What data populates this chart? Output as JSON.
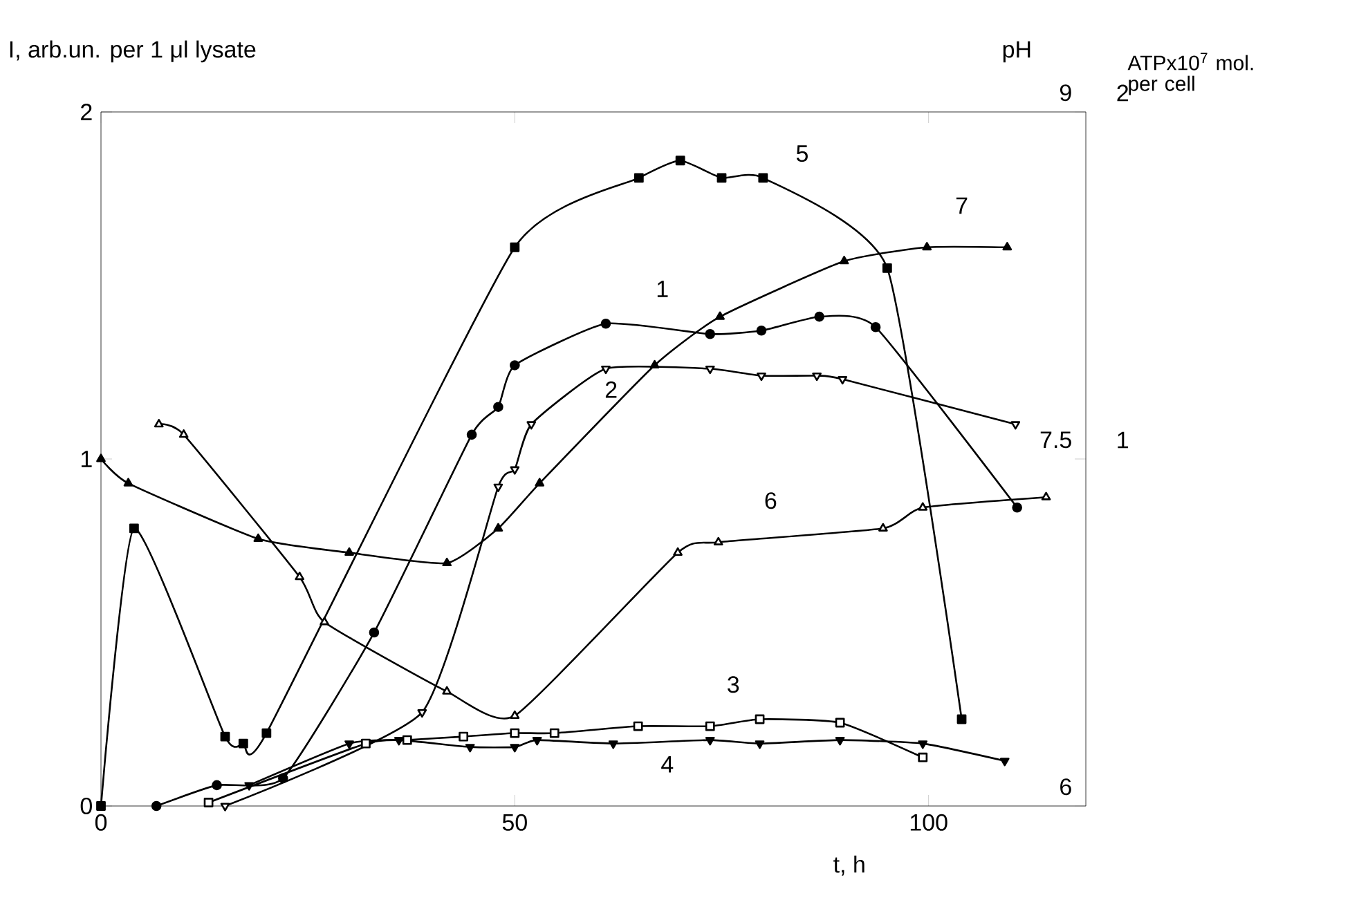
{
  "chart_data": {
    "type": "line",
    "ylabel": "I, arb.un. per 1 μl lysate",
    "xlabel": "t, h",
    "y2label": "pH",
    "y3label": "ATPx10$^{7}$ mol. per cell",
    "xlim": [
      0,
      119
    ],
    "xticks": [
      0,
      50,
      100
    ],
    "ylim": [
      0,
      2
    ],
    "yticks": [
      0,
      1,
      2
    ],
    "y2lim": [
      6,
      9
    ],
    "y2ticks": [
      6,
      7.5,
      9
    ],
    "y3lim": [
      0,
      2
    ],
    "y3ticks": [
      1,
      2
    ],
    "grid": false,
    "legend": false,
    "line_style": "solid",
    "series": [
      {
        "name": "1",
        "color": "#000000",
        "marker": "circle",
        "x": [
          6.7,
          14,
          22,
          33,
          44.8,
          48,
          50,
          61,
          73.6,
          79.8,
          86.8,
          93.6,
          110.7
        ],
        "values": [
          0.0,
          0.06,
          0.08,
          0.5,
          1.07,
          1.15,
          1.27,
          1.39,
          1.36,
          1.37,
          1.41,
          1.38,
          0.86
        ]
      },
      {
        "name": "2",
        "color": "#000000",
        "marker": "triangle-down-open",
        "x": [
          15,
          38.8,
          48,
          50,
          52,
          61,
          73.6,
          79.8,
          86.5,
          89.6,
          110.5
        ],
        "values": [
          0.0,
          0.27,
          0.92,
          0.97,
          1.1,
          1.26,
          1.26,
          1.24,
          1.24,
          1.23,
          1.1
        ]
      },
      {
        "name": "3",
        "color": "#000000",
        "marker": "square-open",
        "x": [
          13,
          32,
          37,
          43.8,
          50,
          54.8,
          64.9,
          73.6,
          79.6,
          89.3,
          99.3
        ],
        "values": [
          0.01,
          0.18,
          0.19,
          0.2,
          0.21,
          0.21,
          0.23,
          0.23,
          0.25,
          0.24,
          0.14
        ]
      },
      {
        "name": "4",
        "color": "#000000",
        "marker": "triangle-down",
        "x": [
          17.9,
          30,
          36,
          44.6,
          50,
          52.7,
          61.9,
          73.6,
          79.6,
          89.3,
          99.3,
          109.2
        ],
        "values": [
          0.06,
          0.18,
          0.19,
          0.17,
          0.17,
          0.19,
          0.18,
          0.19,
          0.18,
          0.19,
          0.18,
          0.13
        ]
      },
      {
        "name": "5",
        "color": "#000000",
        "marker": "square",
        "x": [
          0,
          4,
          15,
          17.2,
          20,
          50,
          65,
          70,
          75,
          80,
          95,
          104
        ],
        "values": [
          0.0,
          0.8,
          0.2,
          0.18,
          0.21,
          1.61,
          1.81,
          1.86,
          1.81,
          1.81,
          1.55,
          0.25
        ]
      },
      {
        "name": "6",
        "color": "#000000",
        "marker": "triangle-open",
        "x": [
          7,
          10,
          24,
          27,
          41.8,
          50,
          69.7,
          74.6,
          94.5,
          99.3,
          114.2
        ],
        "values": [
          1.1,
          1.07,
          0.66,
          0.53,
          0.33,
          0.26,
          0.73,
          0.76,
          0.8,
          0.86,
          0.89
        ]
      },
      {
        "name": "7",
        "color": "#000000",
        "marker": "triangle",
        "x": [
          0,
          3.3,
          19,
          30,
          41.8,
          48,
          53,
          66.9,
          74.8,
          89.8,
          99.8,
          109.5
        ],
        "values": [
          1.0,
          0.93,
          0.77,
          0.73,
          0.7,
          0.8,
          0.93,
          1.27,
          1.41,
          1.57,
          1.61,
          1.61
        ]
      }
    ]
  }
}
